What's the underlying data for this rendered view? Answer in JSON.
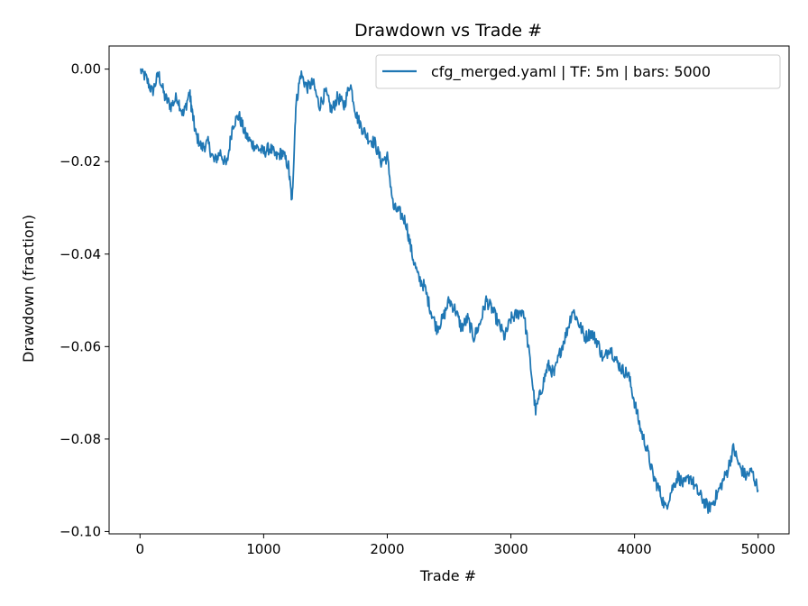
{
  "chart_data": {
    "type": "line",
    "title": "Drawdown vs Trade #",
    "xlabel": "Trade #",
    "ylabel": "Drawdown (fraction)",
    "xlim": [
      -250,
      5250
    ],
    "ylim": [
      -0.1005,
      0.005
    ],
    "x_ticks": [
      0,
      1000,
      2000,
      3000,
      4000,
      5000
    ],
    "x_tick_labels": [
      "0",
      "1000",
      "2000",
      "3000",
      "4000",
      "5000"
    ],
    "y_ticks": [
      0.0,
      -0.02,
      -0.04,
      -0.06,
      -0.08,
      -0.1
    ],
    "y_tick_labels": [
      "0.00",
      "−0.02",
      "−0.04",
      "−0.06",
      "−0.08",
      "−0.10"
    ],
    "legend_position": "top-right",
    "grid": false,
    "series": [
      {
        "name": "cfg_merged.yaml | TF: 5m | bars: 5000",
        "color": "#1f77b4",
        "x": [
          0,
          50,
          100,
          150,
          200,
          250,
          300,
          350,
          400,
          420,
          450,
          500,
          550,
          600,
          650,
          700,
          750,
          800,
          850,
          900,
          950,
          1000,
          1050,
          1100,
          1150,
          1200,
          1230,
          1260,
          1300,
          1350,
          1400,
          1450,
          1500,
          1550,
          1600,
          1650,
          1700,
          1750,
          1800,
          1850,
          1900,
          1950,
          2000,
          2050,
          2100,
          2150,
          2200,
          2250,
          2300,
          2350,
          2400,
          2450,
          2500,
          2550,
          2600,
          2650,
          2700,
          2750,
          2800,
          2850,
          2900,
          2950,
          3000,
          3050,
          3100,
          3150,
          3200,
          3250,
          3300,
          3350,
          3400,
          3450,
          3500,
          3550,
          3600,
          3650,
          3700,
          3750,
          3800,
          3850,
          3900,
          3950,
          4000,
          4050,
          4100,
          4150,
          4200,
          4250,
          4300,
          4350,
          4400,
          4450,
          4500,
          4550,
          4600,
          4650,
          4700,
          4750,
          4800,
          4850,
          4900,
          4950,
          5000
        ],
        "values": [
          0.0,
          -0.002,
          -0.005,
          -0.001,
          -0.006,
          -0.008,
          -0.006,
          -0.01,
          -0.005,
          -0.009,
          -0.014,
          -0.017,
          -0.016,
          -0.02,
          -0.018,
          -0.021,
          -0.012,
          -0.01,
          -0.014,
          -0.016,
          -0.017,
          -0.018,
          -0.017,
          -0.019,
          -0.018,
          -0.021,
          -0.029,
          -0.008,
          -0.001,
          -0.004,
          -0.003,
          -0.008,
          -0.005,
          -0.009,
          -0.006,
          -0.008,
          -0.003,
          -0.01,
          -0.013,
          -0.015,
          -0.016,
          -0.02,
          -0.019,
          -0.03,
          -0.031,
          -0.033,
          -0.04,
          -0.045,
          -0.047,
          -0.052,
          -0.056,
          -0.054,
          -0.05,
          -0.052,
          -0.056,
          -0.054,
          -0.058,
          -0.055,
          -0.05,
          -0.052,
          -0.055,
          -0.058,
          -0.054,
          -0.053,
          -0.052,
          -0.062,
          -0.074,
          -0.069,
          -0.064,
          -0.066,
          -0.061,
          -0.057,
          -0.052,
          -0.055,
          -0.058,
          -0.057,
          -0.059,
          -0.063,
          -0.06,
          -0.063,
          -0.065,
          -0.066,
          -0.072,
          -0.078,
          -0.082,
          -0.088,
          -0.091,
          -0.095,
          -0.091,
          -0.088,
          -0.09,
          -0.088,
          -0.091,
          -0.093,
          -0.095,
          -0.093,
          -0.09,
          -0.087,
          -0.082,
          -0.086,
          -0.088,
          -0.087,
          -0.091
        ]
      }
    ]
  }
}
